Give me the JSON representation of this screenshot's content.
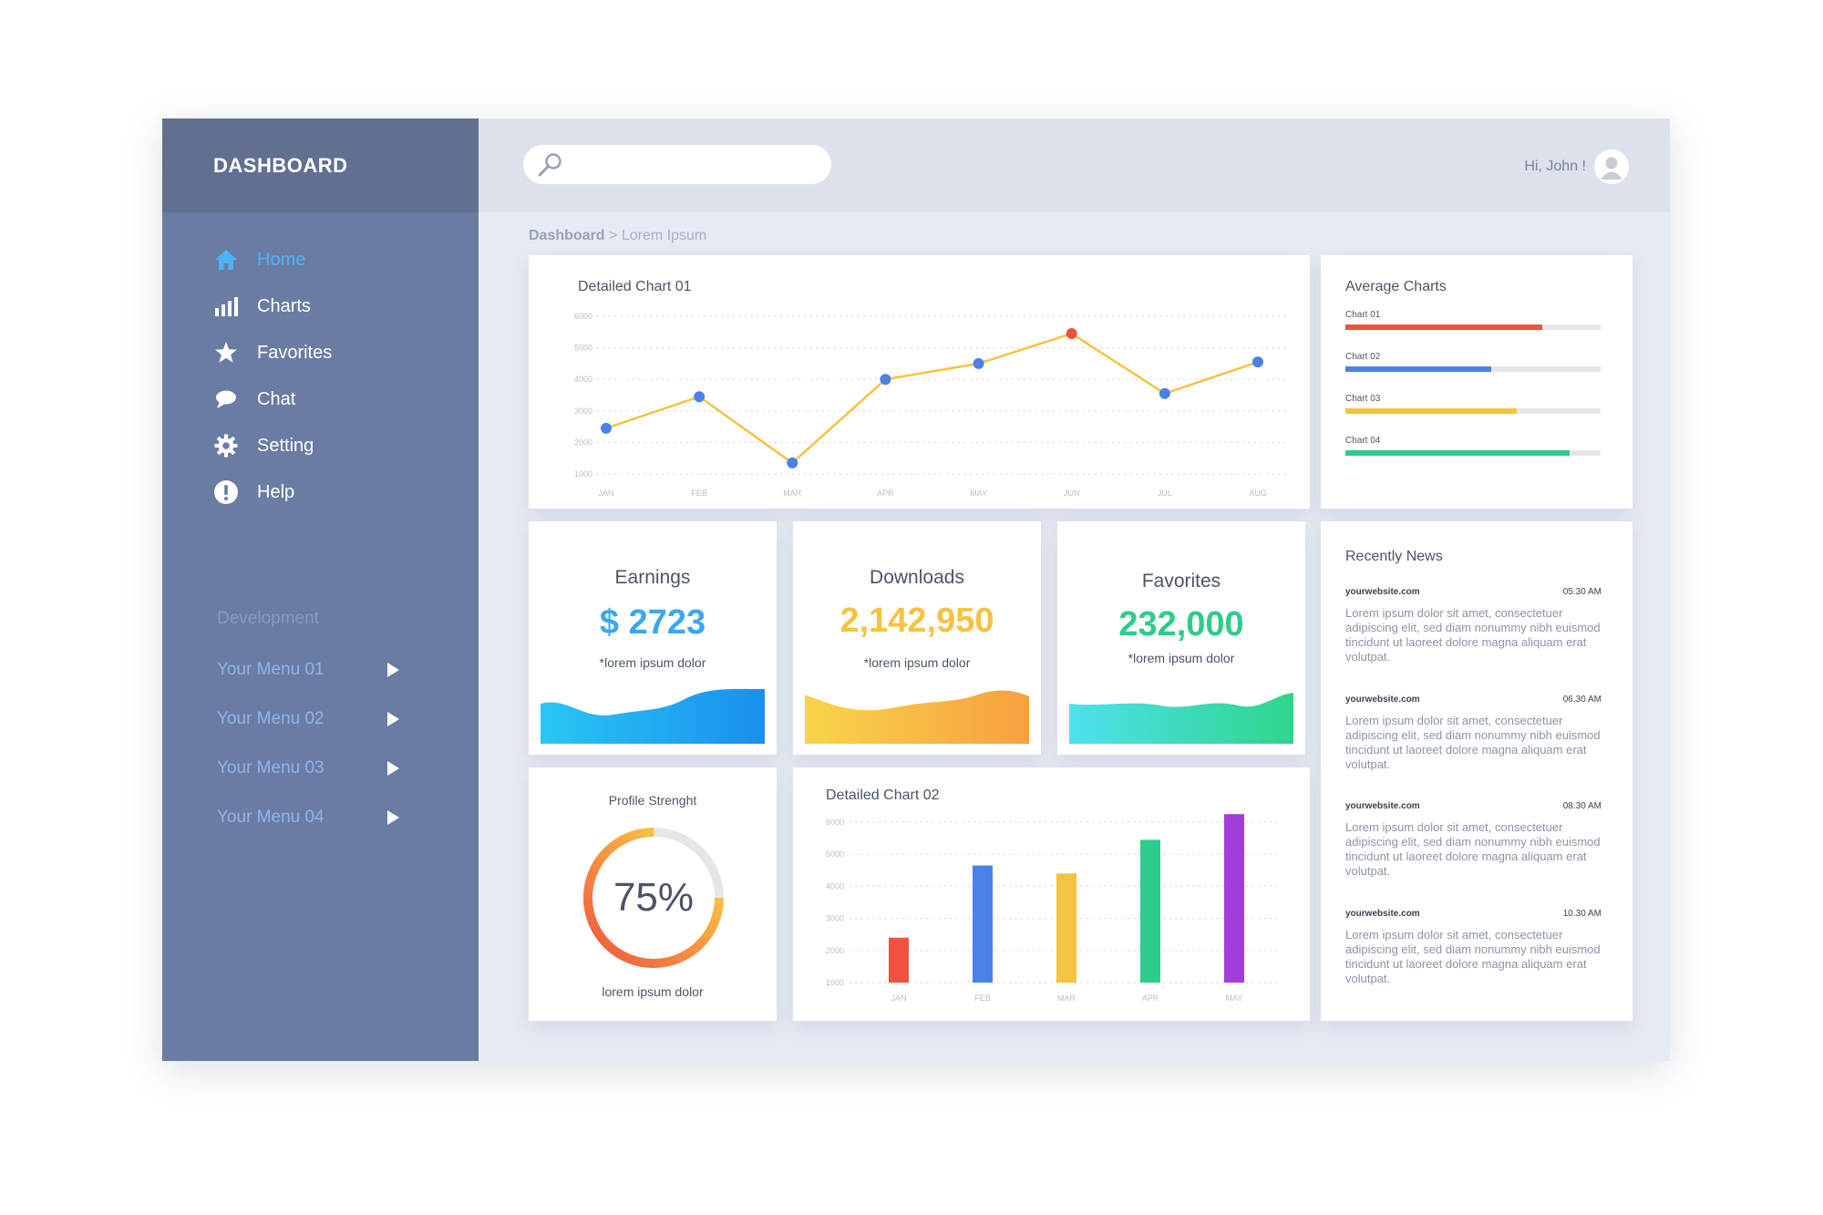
{
  "sidebar": {
    "brand": "DASHBOARD",
    "nav": [
      {
        "label": "Home",
        "icon": "home-icon",
        "active": true
      },
      {
        "label": "Charts",
        "icon": "bar-chart-icon"
      },
      {
        "label": "Favorites",
        "icon": "star-icon"
      },
      {
        "label": "Chat",
        "icon": "chat-bubble-icon"
      },
      {
        "label": "Setting",
        "icon": "gear-icon"
      },
      {
        "label": "Help",
        "icon": "exclamation-icon"
      }
    ],
    "dev_title": "Development",
    "menus": [
      {
        "label": "Your Menu 01"
      },
      {
        "label": "Your Menu 02"
      },
      {
        "label": "Your Menu 03"
      },
      {
        "label": "Your Menu 04"
      }
    ]
  },
  "topbar": {
    "search_placeholder": "",
    "greeting": "Hi, John !"
  },
  "breadcrumb": {
    "root": "Dashboard",
    "sep": ">",
    "current": "Lorem Ipsum"
  },
  "chart1": {
    "title": "Detailed Chart 01",
    "color_line": "#f5c342",
    "color_point": "#4a82e8",
    "color_highlight": "#f0523f"
  },
  "average": {
    "title": "Average Charts",
    "items": [
      {
        "label": "Chart 01",
        "value": 0.77,
        "color": "#f0523f"
      },
      {
        "label": "Chart 02",
        "value": 0.57,
        "color": "#4a82e8"
      },
      {
        "label": "Chart 03",
        "value": 0.67,
        "color": "#f5c342"
      },
      {
        "label": "Chart 04",
        "value": 0.88,
        "color": "#2ecc8a"
      }
    ]
  },
  "stats": {
    "earnings": {
      "title": "Earnings",
      "value": "$ 2723",
      "sub": "*lorem ipsum dolor",
      "color": "#3aa8f0"
    },
    "downloads": {
      "title": "Downloads",
      "value": "2,142,950",
      "sub": "*lorem ipsum dolor",
      "color": "#f5c342"
    },
    "favorites": {
      "title": "Favorites",
      "value": "232,000",
      "sub": "*lorem ipsum dolor",
      "color": "#2ecc8a"
    }
  },
  "profile": {
    "title": "Profile Strenght",
    "percent_text": "75%",
    "value": 0.75,
    "sub": "lorem ipsum dolor"
  },
  "chart2": {
    "title": "Detailed Chart 02"
  },
  "news": {
    "title": "Recently News",
    "items": [
      {
        "site": "yourwebsite.com",
        "time": "05.30 AM",
        "text": "Lorem ipsum dolor sit amet, consectetuer adipiscing elit, sed diam nonummy nibh euismod tincidunt ut laoreet dolore magna aliquam erat volutpat."
      },
      {
        "site": "yourwebsite.com",
        "time": "06.30 AM",
        "text": "Lorem ipsum dolor sit amet, consectetuer adipiscing elit, sed diam nonummy nibh euismod tincidunt ut laoreet dolore magna aliquam erat volutpat."
      },
      {
        "site": "yourwebsite.com",
        "time": "08.30 AM",
        "text": "Lorem ipsum dolor sit amet, consectetuer adipiscing elit, sed diam nonummy nibh euismod tincidunt ut laoreet dolore magna aliquam erat volutpat."
      },
      {
        "site": "yourwebsite.com",
        "time": "10.30 AM",
        "text": "Lorem ipsum dolor sit amet, consectetuer adipiscing elit, sed diam nonummy nibh euismod tincidunt ut laoreet dolore magna aliquam erat volutpat."
      }
    ]
  },
  "chart_data": [
    {
      "type": "line",
      "title": "Detailed Chart 01",
      "categories": [
        "JAN",
        "FEB",
        "MAR",
        "APR",
        "MAY",
        "JUN",
        "JUL",
        "AUG"
      ],
      "y_ticks": [
        "6000",
        "5000",
        "4000",
        "3000",
        "2000",
        "1000"
      ],
      "ylim": [
        1000,
        6000
      ],
      "series": [
        {
          "values": [
            2450,
            3450,
            1350,
            4000,
            4500,
            5450,
            3550,
            4550
          ]
        }
      ],
      "highlight_index": 5,
      "grid": true
    },
    {
      "type": "bar",
      "title": "Detailed Chart 02",
      "categories": [
        "JAN",
        "FEB",
        "MAR",
        "APR",
        "MAY"
      ],
      "y_ticks": [
        "6000",
        "5000",
        "4000",
        "3000",
        "2000",
        "1000"
      ],
      "ylim": [
        1000,
        6000
      ],
      "values": [
        2400,
        4650,
        4400,
        5450,
        6250
      ],
      "colors": [
        "#f0523f",
        "#4a82e8",
        "#f5c342",
        "#2ecc8a",
        "#a23ddb"
      ],
      "grid": true
    }
  ]
}
